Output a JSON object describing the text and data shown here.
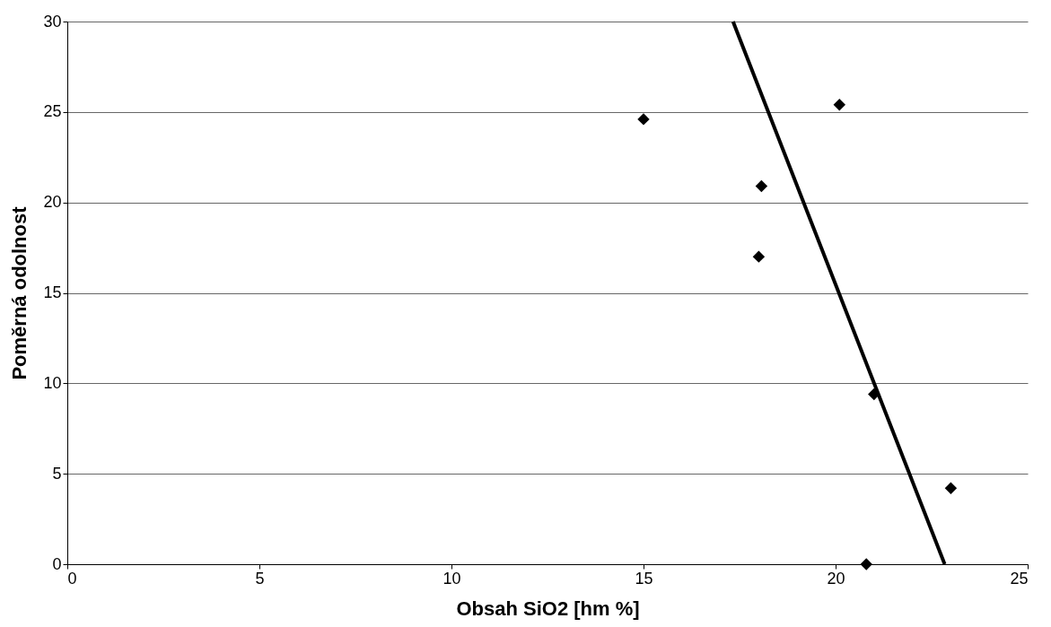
{
  "chart_data": {
    "type": "scatter",
    "xlabel": "Obsah SiO2 [hm %]",
    "ylabel": "Poměrná odolnost",
    "xlim": [
      0,
      25
    ],
    "xticks": [
      0,
      5,
      10,
      15,
      20,
      25
    ],
    "ylim": [
      0,
      30
    ],
    "yticks": [
      0,
      5,
      10,
      15,
      20,
      25,
      30
    ],
    "grid": "y",
    "series": [
      {
        "color": "#000000",
        "marker": "diamond",
        "x": [
          15.0,
          18.07,
          18.0,
          20.1,
          21.0,
          20.8,
          23.0
        ],
        "values": [
          24.6,
          20.9,
          17.0,
          25.4,
          9.4,
          0.0,
          4.2
        ]
      },
      {
        "type": "line",
        "color": "#000000",
        "line_style": "solid",
        "x": [
          17.33,
          22.84
        ],
        "values": [
          30,
          0
        ]
      }
    ]
  }
}
